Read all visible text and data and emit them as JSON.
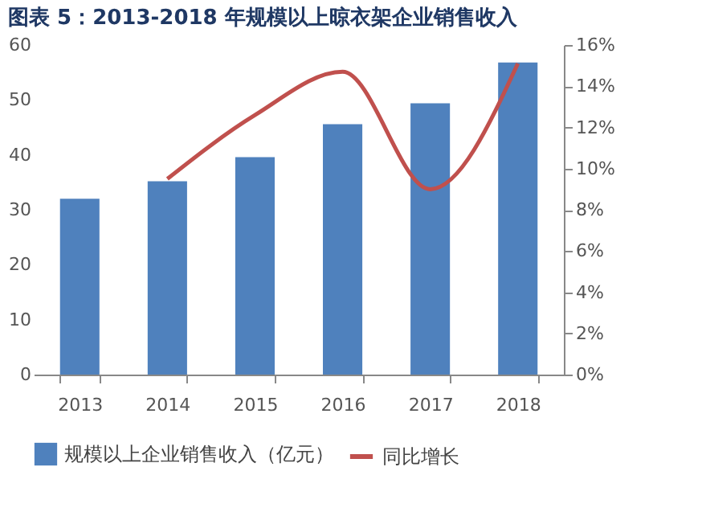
{
  "chart_data": {
    "type": "bar",
    "title": "图表 5：2013-2018 年规模以上晾衣架企业销售收入",
    "categories": [
      "2013",
      "2014",
      "2015",
      "2016",
      "2017",
      "2018"
    ],
    "series": [
      {
        "name": "规模以上企业销售收入（亿元）",
        "color": "#4f81bd",
        "values": [
          32.0,
          35.2,
          39.6,
          45.6,
          49.4,
          56.8
        ]
      },
      {
        "name": "同比增长",
        "type": "line",
        "axis": "y2",
        "color": "#c0504d",
        "values": [
          null,
          9.5,
          12.6,
          14.7,
          9.0,
          15.1
        ]
      }
    ],
    "ylim": [
      0,
      60
    ],
    "yticks": [
      0,
      10,
      20,
      30,
      40,
      50,
      60
    ],
    "y2lim": [
      0,
      16
    ],
    "y2ticks": [
      {
        "value": 0,
        "label": "0%"
      },
      {
        "value": 2,
        "label": "2%"
      },
      {
        "value": 4,
        "label": "4%"
      },
      {
        "value": 6,
        "label": "6%"
      },
      {
        "value": 8,
        "label": "8%"
      },
      {
        "value": 10,
        "label": "10%"
      },
      {
        "value": 12,
        "label": "12%"
      },
      {
        "value": 14,
        "label": "14%"
      },
      {
        "value": 16,
        "label": "16%"
      }
    ],
    "grid": false,
    "legend": "bottom",
    "marker": "none",
    "line_style": "solid"
  }
}
